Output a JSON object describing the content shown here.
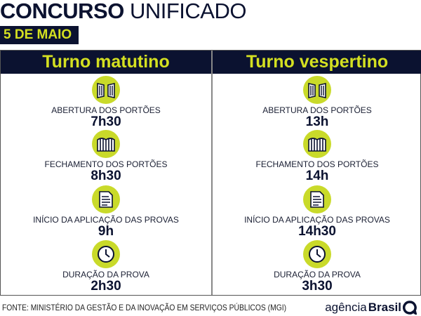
{
  "header": {
    "title_bold": "CONCURSO",
    "title_light": "UNIFICADO",
    "date_badge": "5 DE MAIO"
  },
  "colors": {
    "navy": "#0b1230",
    "lime": "#d4e021"
  },
  "shifts": [
    {
      "name": "Turno matutino",
      "items": [
        {
          "icon": "gate-open-icon",
          "label": "ABERTURA DOS PORTÕES",
          "value": "7h30"
        },
        {
          "icon": "gate-closed-icon",
          "label": "FECHAMENTO DOS PORTÕES",
          "value": "8h30"
        },
        {
          "icon": "exam-sheet-icon",
          "label": "INÍCIO DA APLICAÇÃO DAS PROVAS",
          "value": "9h"
        },
        {
          "icon": "clock-icon",
          "label": "DURAÇÃO DA PROVA",
          "value": "2h30"
        }
      ]
    },
    {
      "name": "Turno vespertino",
      "items": [
        {
          "icon": "gate-open-icon",
          "label": "ABERTURA DOS PORTÕES",
          "value": "13h"
        },
        {
          "icon": "gate-closed-icon",
          "label": "FECHAMENTO DOS PORTÕES",
          "value": "14h"
        },
        {
          "icon": "exam-sheet-icon",
          "label": "INÍCIO DA APLICAÇÃO  DAS PROVAS",
          "value": "14h30"
        },
        {
          "icon": "clock-icon",
          "label": "DURAÇÃO DA PROVA",
          "value": "3h30"
        }
      ]
    }
  ],
  "footer": {
    "source": "FONTE: MINISTÉRIO DA GESTÃO E DA INOVAÇÃO EM SERVIÇOS PÚBLICOS (MGI)",
    "logo_light": "agência",
    "logo_bold": "Brasil"
  }
}
